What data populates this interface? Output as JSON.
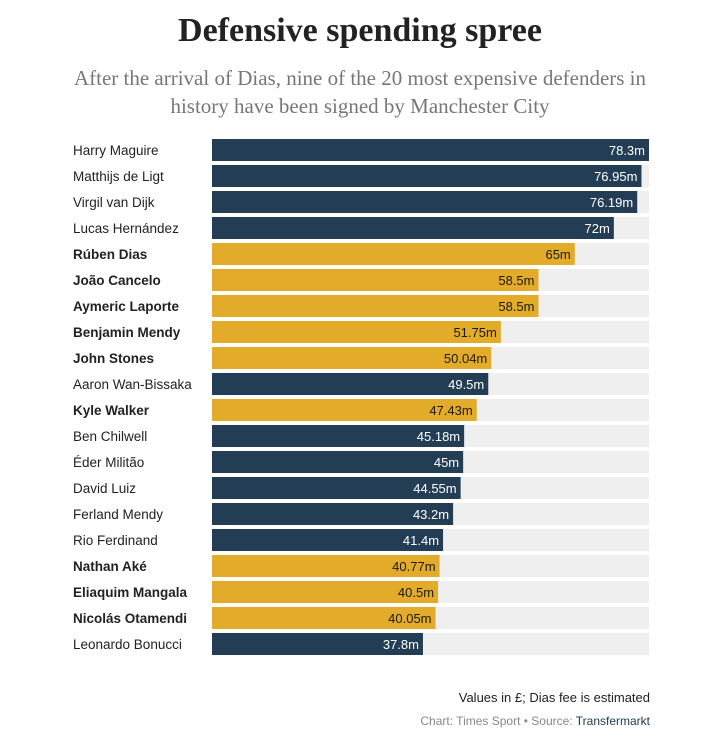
{
  "header": {
    "title": "Defensive spending spree",
    "subtitle": "After the arrival of Dias, nine of the 20 most expensive defenders in history have been signed by Manchester City"
  },
  "footer": {
    "note": "Values in £; Dias fee is estimated",
    "source_prefix": "Chart: Times Sport • Source: ",
    "source_name": "Transfermarkt"
  },
  "colors": {
    "man_city": "#e3ab2a",
    "other": "#233e54",
    "track": "#efefef"
  },
  "chart_data": {
    "type": "bar",
    "orientation": "horizontal",
    "unit_suffix": "m",
    "xlim": [
      0,
      78.3
    ],
    "grid": false,
    "categories": [
      "Harry Maguire",
      "Matthijs de Ligt",
      "Virgil van Dijk",
      "Lucas Hernández",
      "Rúben Dias",
      "João Cancelo",
      "Aymeric Laporte",
      "Benjamin Mendy",
      "John Stones",
      "Aaron Wan-Bissaka",
      "Kyle Walker",
      "Ben Chilwell",
      "Éder Militão",
      "David Luiz",
      "Ferland Mendy",
      "Rio Ferdinand",
      "Nathan Aké",
      "Eliaquim Mangala",
      "Nicolás Otamendi",
      "Leonardo Bonucci"
    ],
    "values": [
      78.3,
      76.95,
      76.19,
      72,
      65,
      58.5,
      58.5,
      51.75,
      50.04,
      49.5,
      47.43,
      45.18,
      45,
      44.55,
      43.2,
      41.4,
      40.77,
      40.5,
      40.05,
      37.8
    ],
    "labels": [
      "78.3m",
      "76.95m",
      "76.19m",
      "72m",
      "65m",
      "58.5m",
      "58.5m",
      "51.75m",
      "50.04m",
      "49.5m",
      "47.43m",
      "45.18m",
      "45m",
      "44.55m",
      "43.2m",
      "41.4m",
      "40.77m",
      "40.5m",
      "40.05m",
      "37.8m"
    ],
    "highlight": [
      false,
      false,
      false,
      false,
      true,
      true,
      true,
      true,
      true,
      false,
      true,
      false,
      false,
      false,
      false,
      false,
      true,
      true,
      true,
      false
    ]
  }
}
